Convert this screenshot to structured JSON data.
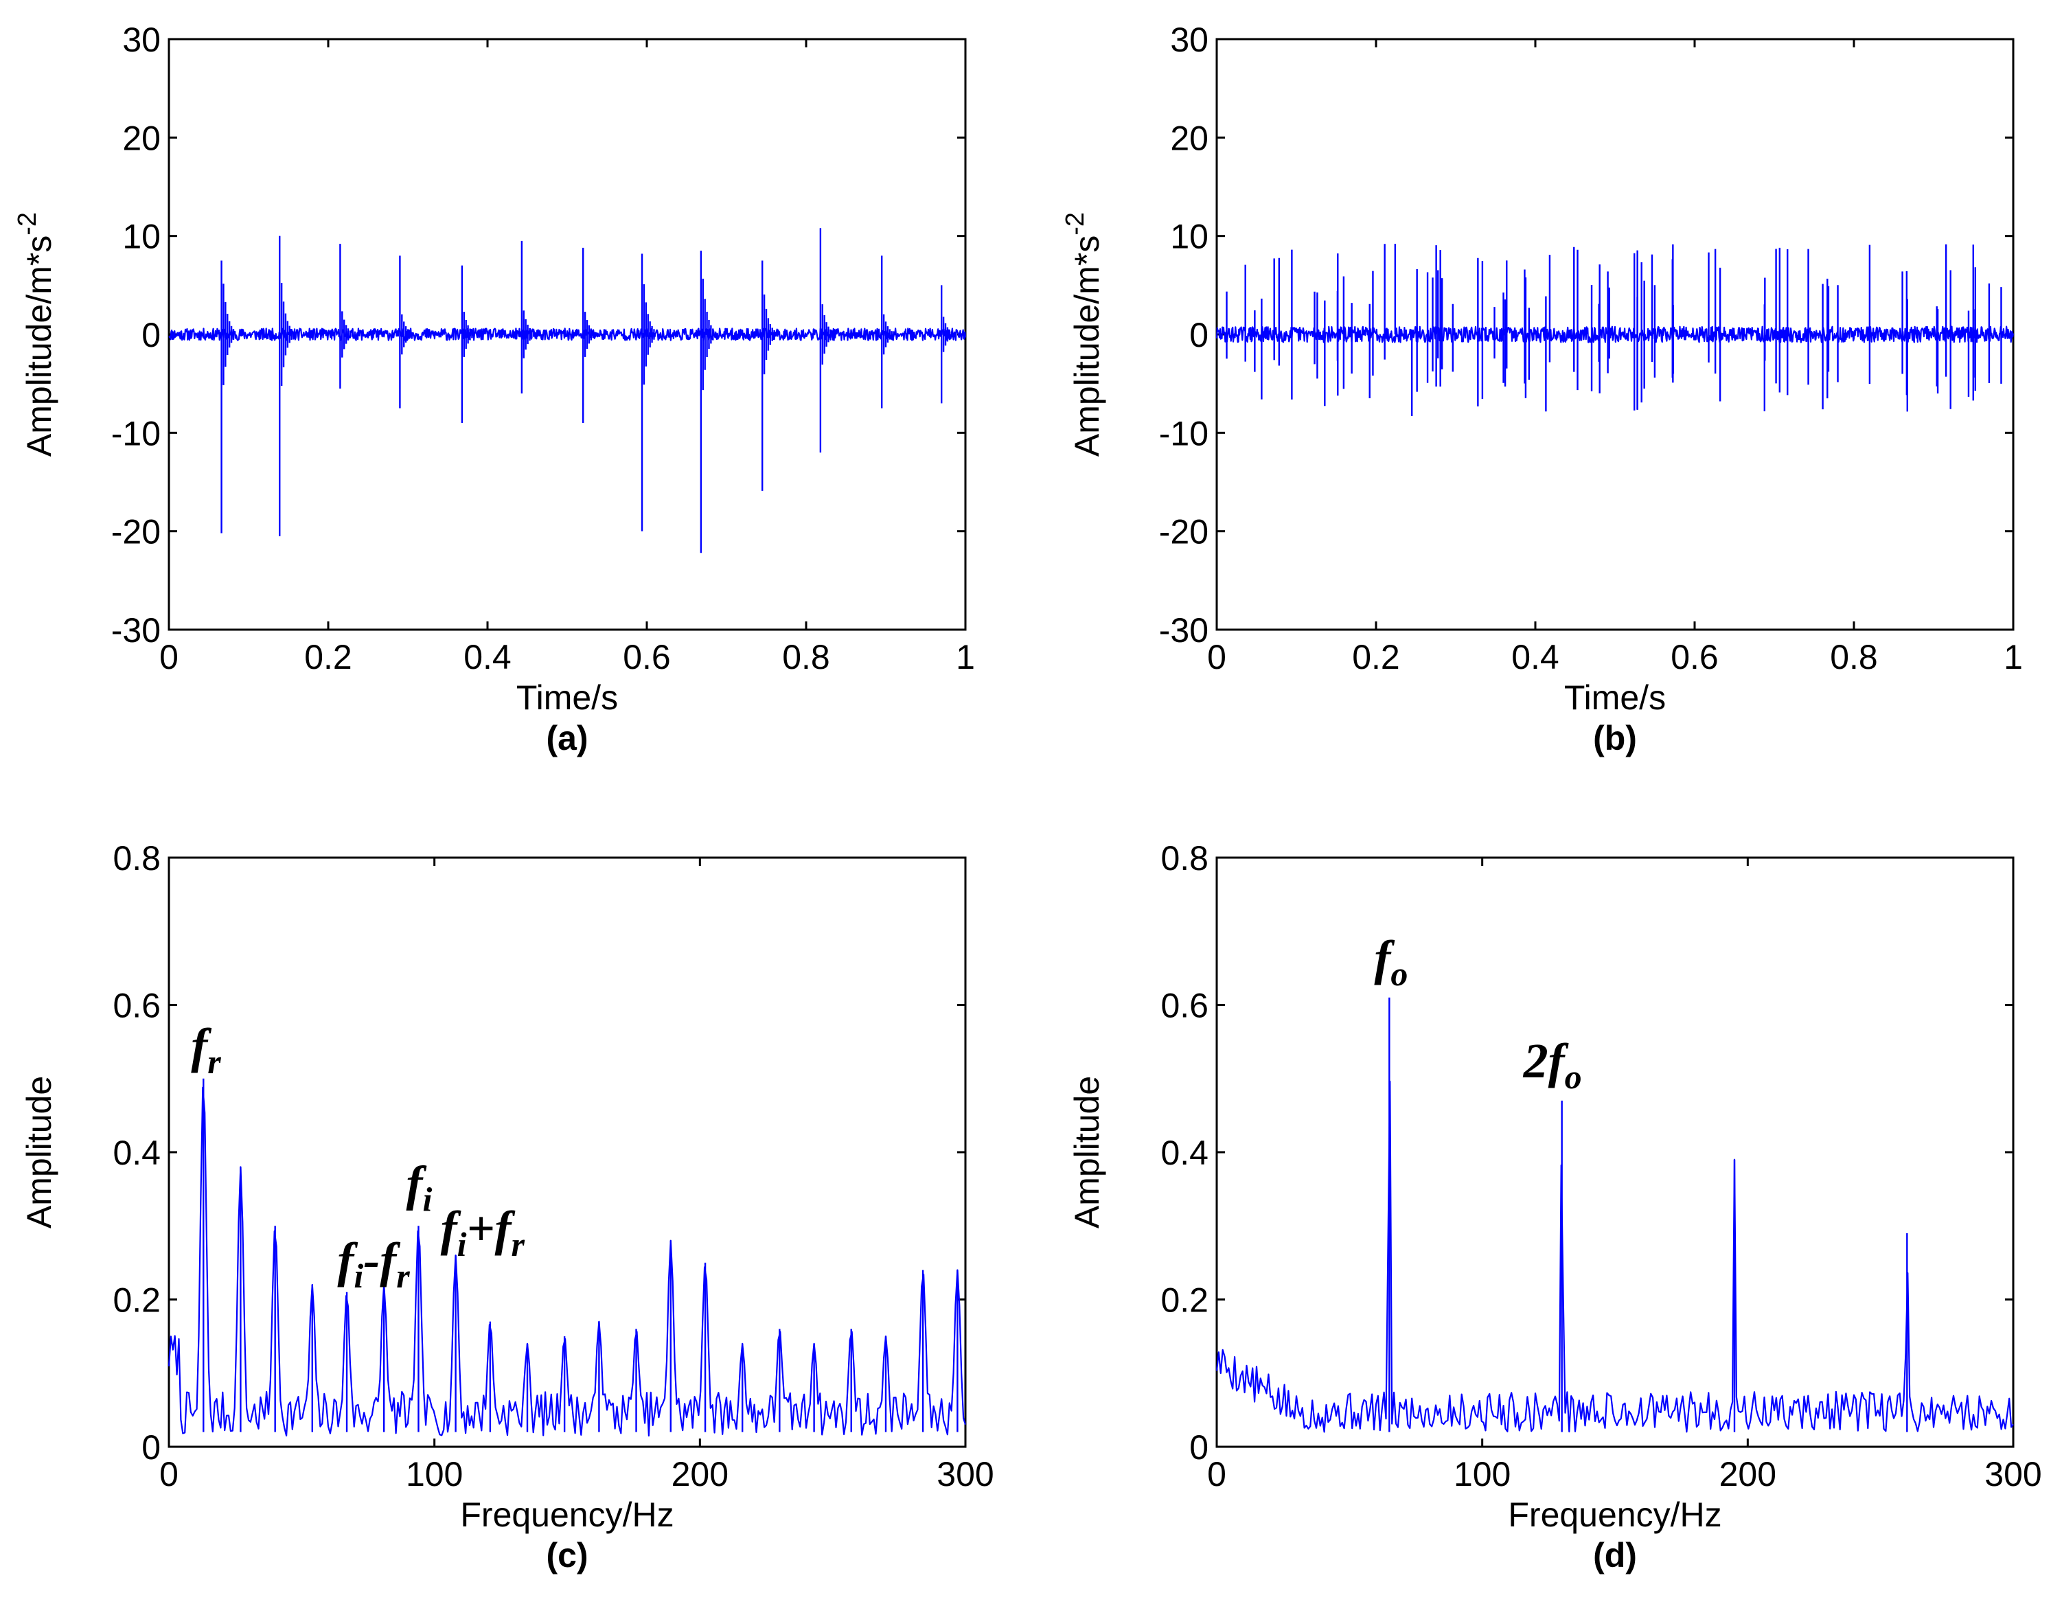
{
  "chart_data": [
    {
      "id": "a",
      "type": "line",
      "caption": "(a)",
      "xlabel": "Time/s",
      "ylabel": "Amplitude/m*s",
      "ylabel_exponent": "-2",
      "xlim": [
        0,
        1
      ],
      "ylim": [
        -30,
        30
      ],
      "xticks": [
        0,
        0.2,
        0.4,
        0.6,
        0.8,
        1
      ],
      "xtick_labels": [
        "0",
        "0.2",
        "0.4",
        "0.6",
        "0.8",
        "1"
      ],
      "yticks": [
        -30,
        -20,
        -10,
        0,
        10,
        20,
        30
      ],
      "ytick_labels": [
        "-30",
        "-20",
        "-10",
        "0",
        "10",
        "20",
        "30"
      ],
      "series_color": "#0000ff",
      "noise_amplitude": 0.6,
      "impulses": [
        {
          "x": 0.066,
          "high": 7.5,
          "low": -20.2
        },
        {
          "x": 0.139,
          "high": 10.0,
          "low": -20.5
        },
        {
          "x": 0.215,
          "high": 9.2,
          "low": -5.5
        },
        {
          "x": 0.29,
          "high": 8.0,
          "low": -7.5
        },
        {
          "x": 0.368,
          "high": 7.0,
          "low": -9.0
        },
        {
          "x": 0.443,
          "high": 9.5,
          "low": -6.0
        },
        {
          "x": 0.52,
          "high": 8.8,
          "low": -9.0
        },
        {
          "x": 0.594,
          "high": 8.2,
          "low": -20.0
        },
        {
          "x": 0.668,
          "high": 8.5,
          "low": -22.2
        },
        {
          "x": 0.745,
          "high": 7.5,
          "low": -15.9
        },
        {
          "x": 0.818,
          "high": 10.8,
          "low": -12.0
        },
        {
          "x": 0.895,
          "high": 8.0,
          "low": -7.5
        },
        {
          "x": 0.97,
          "high": 5.0,
          "low": -7.0
        }
      ]
    },
    {
      "id": "b",
      "type": "line",
      "caption": "(b)",
      "xlabel": "Time/s",
      "ylabel": "Amplitude/m*s",
      "ylabel_exponent": "-2",
      "xlim": [
        0,
        1
      ],
      "ylim": [
        -30,
        30
      ],
      "xticks": [
        0,
        0.2,
        0.4,
        0.6,
        0.8,
        1
      ],
      "xtick_labels": [
        "0",
        "0.2",
        "0.4",
        "0.6",
        "0.8",
        "1"
      ],
      "yticks": [
        -30,
        -20,
        -10,
        0,
        10,
        20,
        30
      ],
      "ytick_labels": [
        "-30",
        "-20",
        "-10",
        "0",
        "10",
        "20",
        "30"
      ],
      "series_color": "#0000ff",
      "noise_amplitude": 0.8,
      "impulse_count": 80,
      "impulse_range": [
        -8.3,
        9.2
      ]
    },
    {
      "id": "c",
      "type": "line",
      "caption": "(c)",
      "xlabel": "Frequency/Hz",
      "ylabel": "Amplitude",
      "xlim": [
        0,
        300
      ],
      "ylim": [
        0,
        0.8
      ],
      "xticks": [
        0,
        100,
        200,
        300
      ],
      "xtick_labels": [
        "0",
        "100",
        "200",
        "300"
      ],
      "yticks": [
        0,
        0.2,
        0.4,
        0.6,
        0.8
      ],
      "ytick_labels": [
        "0",
        "0.2",
        "0.4",
        "0.6",
        "0.8"
      ],
      "series_color": "#0000ff",
      "peaks": [
        {
          "x": 13,
          "y": 0.5
        },
        {
          "x": 27,
          "y": 0.38
        },
        {
          "x": 40,
          "y": 0.3
        },
        {
          "x": 54,
          "y": 0.22
        },
        {
          "x": 67,
          "y": 0.21
        },
        {
          "x": 81,
          "y": 0.22
        },
        {
          "x": 94,
          "y": 0.3
        },
        {
          "x": 108,
          "y": 0.26
        },
        {
          "x": 121,
          "y": 0.17
        },
        {
          "x": 135,
          "y": 0.14
        },
        {
          "x": 149,
          "y": 0.15
        },
        {
          "x": 162,
          "y": 0.17
        },
        {
          "x": 176,
          "y": 0.16
        },
        {
          "x": 189,
          "y": 0.28
        },
        {
          "x": 202,
          "y": 0.25
        },
        {
          "x": 216,
          "y": 0.14
        },
        {
          "x": 230,
          "y": 0.16
        },
        {
          "x": 243,
          "y": 0.14
        },
        {
          "x": 257,
          "y": 0.16
        },
        {
          "x": 270,
          "y": 0.15
        },
        {
          "x": 284,
          "y": 0.24
        },
        {
          "x": 297,
          "y": 0.24
        }
      ],
      "annotations": [
        {
          "name": "fr",
          "base": "f",
          "sub": "r",
          "x": 13,
          "y": 0.5
        },
        {
          "name": "fi-fr",
          "base": "f",
          "sub": "i",
          "op": "-",
          "base2": "f",
          "sub2": "r",
          "x": 80,
          "y": 0.22
        },
        {
          "name": "fi",
          "base": "f",
          "sub": "i",
          "x": 94,
          "y": 0.3
        },
        {
          "name": "fi+fr",
          "base": "f",
          "sub": "i",
          "op": "+",
          "base2": "f",
          "sub2": "r",
          "x": 108,
          "y": 0.26
        }
      ]
    },
    {
      "id": "d",
      "type": "line",
      "caption": "(d)",
      "xlabel": "Frequency/Hz",
      "ylabel": "Amplitude",
      "xlim": [
        0,
        300
      ],
      "ylim": [
        0,
        0.8
      ],
      "xticks": [
        0,
        100,
        200,
        300
      ],
      "xtick_labels": [
        "0",
        "100",
        "200",
        "300"
      ],
      "yticks": [
        0,
        0.2,
        0.4,
        0.6,
        0.8
      ],
      "ytick_labels": [
        "0",
        "0.2",
        "0.4",
        "0.6",
        "0.8"
      ],
      "series_color": "#0000ff",
      "peaks": [
        {
          "x": 65,
          "y": 0.61
        },
        {
          "x": 130,
          "y": 0.47
        },
        {
          "x": 195,
          "y": 0.39
        },
        {
          "x": 260,
          "y": 0.29
        }
      ],
      "annotations": [
        {
          "name": "fo",
          "base": "f",
          "sub": "o",
          "x": 65,
          "y": 0.61
        },
        {
          "name": "2fo",
          "prefix": "2",
          "base": "f",
          "sub": "o",
          "x": 130,
          "y": 0.47
        }
      ]
    }
  ]
}
